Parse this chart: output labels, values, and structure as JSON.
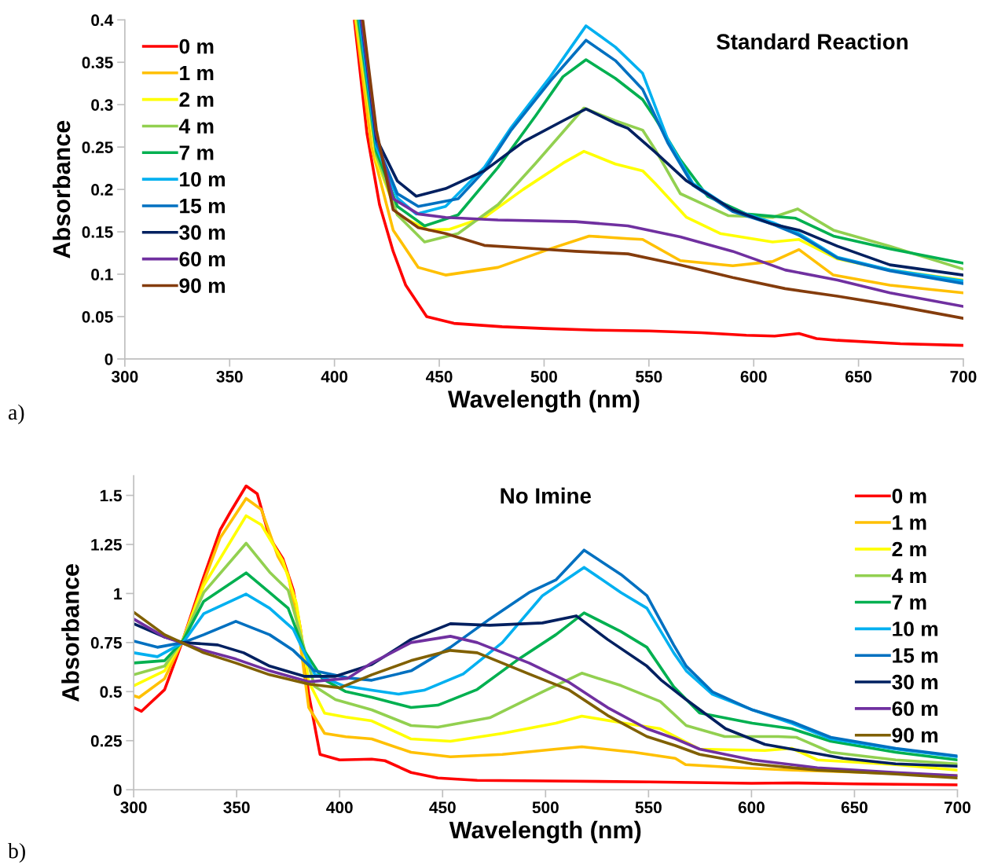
{
  "chart_data": [
    {
      "type": "line",
      "title": "Standard Reaction",
      "xlabel": "Wavelength (nm)",
      "ylabel": "Absorbance",
      "annotations": [
        "a)"
      ],
      "xlim": [
        300,
        700
      ],
      "xticks": [
        300,
        350,
        400,
        450,
        500,
        550,
        600,
        650,
        700
      ],
      "ylim": [
        0,
        0.4
      ],
      "yticks": [
        0,
        0.05,
        0.1,
        0.15,
        0.2,
        0.25,
        0.3,
        0.35,
        0.4
      ],
      "grid": false,
      "legend": "top left",
      "series": [
        {
          "name": "0 m",
          "color": "#ff0000",
          "x": [
            409.5,
            415.5,
            421.5,
            428,
            434,
            444,
            457,
            480,
            500,
            525,
            550,
            575,
            596.5,
            610,
            621.6,
            630,
            640,
            670,
            700
          ],
          "values": [
            0.4,
            0.266,
            0.182,
            0.127,
            0.087,
            0.05,
            0.042,
            0.038,
            0.036,
            0.034,
            0.033,
            0.031,
            0.028,
            0.027,
            0.03,
            0.024,
            0.022,
            0.018,
            0.016
          ]
        },
        {
          "name": "1 m",
          "color": "#ffc000",
          "x": [
            410,
            417.7,
            428,
            440,
            453,
            478,
            503,
            521.5,
            540,
            547,
            565,
            590,
            609,
            621.6,
            638,
            665,
            700
          ],
          "values": [
            0.4,
            0.25,
            0.152,
            0.108,
            0.099,
            0.108,
            0.13,
            0.145,
            0.142,
            0.141,
            0.116,
            0.11,
            0.115,
            0.129,
            0.099,
            0.087,
            0.078
          ]
        },
        {
          "name": "2 m",
          "color": "#ffff00",
          "x": [
            410.5,
            420,
            430,
            445,
            455,
            471.5,
            490,
            509,
            519,
            534,
            547,
            553,
            568,
            584,
            609,
            621.6,
            640,
            665,
            700
          ],
          "values": [
            0.4,
            0.235,
            0.17,
            0.152,
            0.153,
            0.167,
            0.2,
            0.231,
            0.245,
            0.23,
            0.222,
            0.207,
            0.167,
            0.148,
            0.138,
            0.141,
            0.118,
            0.105,
            0.093
          ]
        },
        {
          "name": "4 m",
          "color": "#92d050",
          "x": [
            411,
            420,
            430,
            443,
            459,
            478,
            496,
            519,
            534,
            547,
            553,
            565,
            588,
            609,
            621,
            638,
            665,
            700
          ],
          "values": [
            0.4,
            0.24,
            0.17,
            0.138,
            0.148,
            0.182,
            0.231,
            0.296,
            0.281,
            0.27,
            0.247,
            0.195,
            0.169,
            0.167,
            0.177,
            0.152,
            0.133,
            0.106
          ]
        },
        {
          "name": "7 m",
          "color": "#00b050",
          "x": [
            411.5,
            420,
            430,
            443,
            459,
            478,
            496,
            509,
            520,
            534,
            547,
            553,
            565,
            578,
            596.5,
            620,
            638,
            665,
            700
          ],
          "values": [
            0.4,
            0.245,
            0.18,
            0.157,
            0.17,
            0.226,
            0.287,
            0.333,
            0.353,
            0.331,
            0.306,
            0.284,
            0.235,
            0.192,
            0.171,
            0.166,
            0.145,
            0.13,
            0.113
          ]
        },
        {
          "name": "10 m",
          "color": "#00b0f0",
          "x": [
            412,
            420,
            430,
            439,
            453,
            471.5,
            484,
            503,
            520,
            534,
            547,
            559,
            571,
            590,
            609,
            621.6,
            640,
            665,
            700
          ],
          "values": [
            0.4,
            0.25,
            0.19,
            0.171,
            0.18,
            0.226,
            0.272,
            0.333,
            0.393,
            0.368,
            0.337,
            0.259,
            0.207,
            0.176,
            0.161,
            0.148,
            0.12,
            0.105,
            0.092
          ]
        },
        {
          "name": "15 m",
          "color": "#0070c0",
          "x": [
            412.5,
            420,
            430,
            440,
            459,
            471.5,
            484,
            503,
            520,
            534,
            547,
            559,
            571,
            590,
            609,
            621.6,
            640,
            665,
            700
          ],
          "values": [
            0.4,
            0.255,
            0.195,
            0.18,
            0.189,
            0.222,
            0.269,
            0.328,
            0.376,
            0.352,
            0.318,
            0.255,
            0.205,
            0.174,
            0.159,
            0.146,
            0.119,
            0.104,
            0.089
          ]
        },
        {
          "name": "30 m",
          "color": "#002060",
          "x": [
            413,
            420,
            430,
            439,
            453,
            471.5,
            490,
            509,
            520,
            534,
            540,
            553,
            568,
            590,
            609,
            621.6,
            640,
            665,
            700
          ],
          "values": [
            0.4,
            0.26,
            0.21,
            0.192,
            0.201,
            0.222,
            0.256,
            0.281,
            0.295,
            0.278,
            0.272,
            0.244,
            0.21,
            0.176,
            0.159,
            0.152,
            0.133,
            0.111,
            0.099
          ]
        },
        {
          "name": "60 m",
          "color": "#7030a0",
          "x": [
            413,
            420,
            428,
            440,
            453,
            478,
            515,
            540,
            565,
            590,
            615,
            640,
            665,
            700
          ],
          "values": [
            0.4,
            0.265,
            0.189,
            0.171,
            0.167,
            0.164,
            0.162,
            0.157,
            0.144,
            0.127,
            0.105,
            0.093,
            0.078,
            0.062
          ]
        },
        {
          "name": "90 m",
          "color": "#843c0c",
          "x": [
            413.5,
            420,
            428,
            440,
            453,
            471.5,
            490,
            515,
            540,
            565,
            590,
            615,
            640,
            665,
            700
          ],
          "values": [
            0.4,
            0.27,
            0.176,
            0.155,
            0.148,
            0.134,
            0.131,
            0.127,
            0.124,
            0.111,
            0.096,
            0.083,
            0.074,
            0.064,
            0.048
          ]
        }
      ]
    },
    {
      "type": "line",
      "title": "No Imine",
      "xlabel": "Wavelength (nm)",
      "ylabel": "Absorbance",
      "annotations": [
        "b)"
      ],
      "xlim": [
        300,
        700
      ],
      "xticks": [
        300,
        350,
        400,
        450,
        500,
        550,
        600,
        650,
        700
      ],
      "ylim": [
        0,
        1.6
      ],
      "yticks": [
        0,
        0.25,
        0.5,
        0.75,
        1,
        1.25,
        1.5
      ],
      "grid": false,
      "legend": "top right",
      "series": [
        {
          "name": "0 m",
          "color": "#ff0000",
          "x": [
            300,
            303.8,
            315,
            324,
            334,
            342,
            347,
            354.6,
            360,
            366,
            372.5,
            377.5,
            381,
            385,
            390.5,
            400,
            415.6,
            422,
            434.7,
            447.7,
            466.8,
            500,
            550,
            600,
            620,
            650,
            700
          ],
          "values": [
            0.419,
            0.4,
            0.51,
            0.766,
            1.085,
            1.324,
            1.416,
            1.548,
            1.508,
            1.284,
            1.177,
            1.017,
            0.818,
            0.487,
            0.18,
            0.152,
            0.156,
            0.148,
            0.088,
            0.06,
            0.048,
            0.045,
            0.04,
            0.033,
            0.035,
            0.03,
            0.025
          ]
        },
        {
          "name": "1 m",
          "color": "#ffc000",
          "x": [
            300,
            302.6,
            315,
            324,
            334,
            342,
            354.6,
            362,
            370,
            375,
            380,
            385,
            392.7,
            403,
            415.6,
            434.7,
            453.8,
            479,
            505,
            517.6,
            543,
            563,
            568,
            594,
            620,
            650,
            700
          ],
          "values": [
            0.479,
            0.47,
            0.566,
            0.766,
            1.058,
            1.284,
            1.484,
            1.428,
            1.189,
            1.097,
            0.818,
            0.419,
            0.287,
            0.27,
            0.259,
            0.191,
            0.168,
            0.18,
            0.207,
            0.219,
            0.191,
            0.16,
            0.128,
            0.112,
            0.1,
            0.09,
            0.072
          ]
        },
        {
          "name": "2 m",
          "color": "#ffff00",
          "x": [
            300,
            315,
            324,
            334,
            354.6,
            362,
            372.5,
            379,
            385,
            392.7,
            403,
            415.6,
            434.7,
            453.8,
            479,
            505,
            517.6,
            543,
            555.7,
            574.8,
            606.5,
            619.5,
            632,
            670,
            700
          ],
          "values": [
            0.53,
            0.606,
            0.766,
            1.04,
            1.396,
            1.35,
            1.165,
            0.95,
            0.55,
            0.39,
            0.37,
            0.351,
            0.259,
            0.247,
            0.287,
            0.339,
            0.375,
            0.331,
            0.311,
            0.207,
            0.2,
            0.211,
            0.152,
            0.128,
            0.1
          ]
        },
        {
          "name": "4 m",
          "color": "#92d050",
          "x": [
            300,
            315,
            324,
            334,
            354.6,
            366,
            375,
            381,
            387.8,
            398,
            415.6,
            434.7,
            447.7,
            472.9,
            498.5,
            517.6,
            536.6,
            555.7,
            568.3,
            587,
            613,
            621.8,
            638.5,
            670,
            700
          ],
          "values": [
            0.586,
            0.63,
            0.766,
            1.005,
            1.256,
            1.109,
            1.017,
            0.79,
            0.527,
            0.459,
            0.407,
            0.327,
            0.319,
            0.367,
            0.499,
            0.594,
            0.531,
            0.45,
            0.327,
            0.271,
            0.271,
            0.267,
            0.191,
            0.152,
            0.132
          ]
        },
        {
          "name": "7 m",
          "color": "#00b050",
          "x": [
            300,
            315,
            324,
            334,
            354.6,
            366,
            375,
            382.8,
            391.6,
            403,
            415.6,
            434.7,
            447.7,
            466.8,
            485.9,
            505,
            518.7,
            536.6,
            549.2,
            562.2,
            574.8,
            600.4,
            619.5,
            638.5,
            670,
            700
          ],
          "values": [
            0.646,
            0.658,
            0.76,
            0.96,
            1.105,
            1.005,
            0.925,
            0.71,
            0.566,
            0.5,
            0.471,
            0.419,
            0.431,
            0.511,
            0.658,
            0.79,
            0.901,
            0.806,
            0.726,
            0.525,
            0.391,
            0.339,
            0.311,
            0.247,
            0.191,
            0.152
          ]
        },
        {
          "name": "10 m",
          "color": "#00b0f0",
          "x": [
            300,
            311.5,
            324,
            334,
            354.6,
            366,
            377.5,
            387.8,
            401.9,
            415.6,
            428.6,
            441,
            460,
            479,
            498.5,
            518.7,
            536.6,
            549.2,
            562.2,
            568.3,
            581,
            600.4,
            619.5,
            638.5,
            670,
            700
          ],
          "values": [
            0.698,
            0.678,
            0.75,
            0.897,
            0.997,
            0.925,
            0.818,
            0.59,
            0.53,
            0.507,
            0.487,
            0.507,
            0.59,
            0.75,
            0.989,
            1.133,
            1.005,
            0.925,
            0.698,
            0.606,
            0.487,
            0.407,
            0.339,
            0.259,
            0.207,
            0.168
          ]
        },
        {
          "name": "15 m",
          "color": "#0070c0",
          "x": [
            300,
            311.5,
            324,
            334,
            349.6,
            366,
            377.5,
            387.8,
            404,
            415.6,
            434.7,
            453.8,
            472.9,
            492,
            505,
            518.7,
            536.6,
            549.2,
            562.2,
            568.3,
            581,
            600.4,
            619.5,
            638.5,
            670,
            700
          ],
          "values": [
            0.758,
            0.726,
            0.75,
            0.79,
            0.858,
            0.79,
            0.71,
            0.606,
            0.57,
            0.558,
            0.606,
            0.726,
            0.87,
            1.005,
            1.069,
            1.221,
            1.097,
            0.989,
            0.738,
            0.63,
            0.499,
            0.407,
            0.347,
            0.267,
            0.211,
            0.172
          ]
        },
        {
          "name": "30 m",
          "color": "#002060",
          "x": [
            300,
            315,
            324,
            340.8,
            353.4,
            366,
            382.8,
            398,
            415.6,
            434.7,
            453.8,
            472.9,
            498.5,
            514.9,
            530.1,
            549.2,
            556,
            568.3,
            587.4,
            606.5,
            619.5,
            644.6,
            670,
            700
          ],
          "values": [
            0.846,
            0.778,
            0.75,
            0.738,
            0.698,
            0.63,
            0.578,
            0.578,
            0.638,
            0.766,
            0.846,
            0.838,
            0.85,
            0.886,
            0.766,
            0.63,
            0.56,
            0.459,
            0.311,
            0.231,
            0.207,
            0.16,
            0.132,
            0.12
          ]
        },
        {
          "name": "60 m",
          "color": "#7030a0",
          "x": [
            300,
            315,
            334,
            349.6,
            366,
            385,
            404,
            415.6,
            434.7,
            453.8,
            466.8,
            492,
            511,
            530.1,
            549.2,
            563,
            574.8,
            600.4,
            632,
            670,
            700
          ],
          "values": [
            0.87,
            0.778,
            0.71,
            0.666,
            0.606,
            0.55,
            0.568,
            0.646,
            0.75,
            0.782,
            0.75,
            0.646,
            0.55,
            0.419,
            0.311,
            0.26,
            0.207,
            0.152,
            0.112,
            0.088,
            0.072
          ]
        },
        {
          "name": "90 m",
          "color": "#806000",
          "x": [
            300,
            315,
            334,
            349.6,
            366,
            385,
            400,
            415.6,
            434.7,
            453.8,
            466.8,
            492,
            511,
            530.1,
            549.2,
            563,
            574.8,
            600.4,
            632,
            670,
            700
          ],
          "values": [
            0.905,
            0.79,
            0.698,
            0.646,
            0.586,
            0.538,
            0.519,
            0.586,
            0.658,
            0.71,
            0.698,
            0.59,
            0.511,
            0.379,
            0.271,
            0.225,
            0.18,
            0.132,
            0.1,
            0.08,
            0.06
          ]
        }
      ]
    }
  ]
}
